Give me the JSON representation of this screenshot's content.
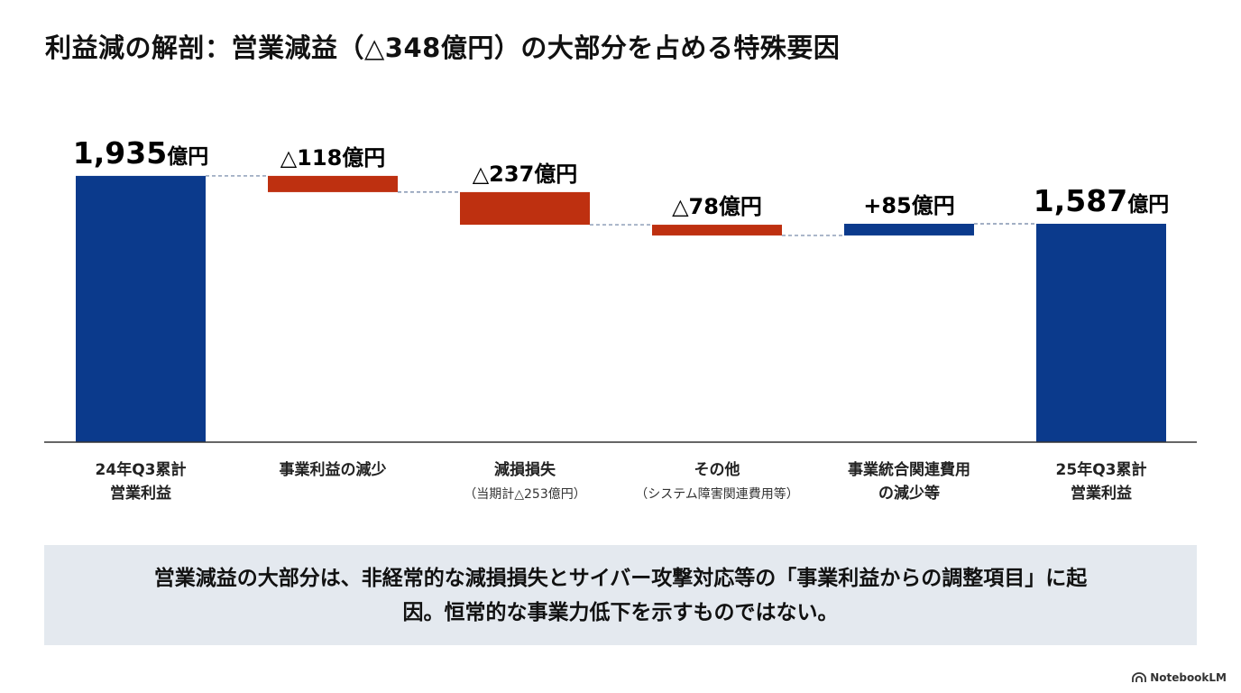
{
  "title": "利益減の解剖：営業減益（△348億円）の大部分を占める特殊要因",
  "chart_data": {
    "type": "waterfall",
    "unit": "億円",
    "bars": [
      {
        "category": [
          "24年Q3累計",
          "営業利益"
        ],
        "sub": "",
        "kind": "total",
        "value": 1935,
        "label_num": "1,935",
        "label_unit": "億円"
      },
      {
        "category": [
          "事業利益の減少"
        ],
        "sub": "",
        "kind": "decrease",
        "value": -118,
        "label": "△118億円"
      },
      {
        "category": [
          "減損損失"
        ],
        "sub": "（当期計△253億円）",
        "kind": "decrease",
        "value": -237,
        "label": "△237億円"
      },
      {
        "category": [
          "その他"
        ],
        "sub": "（システム障害関連費用等）",
        "kind": "decrease",
        "value": -78,
        "label": "△78億円"
      },
      {
        "category": [
          "事業統合関連費用",
          "の減少等"
        ],
        "sub": "",
        "kind": "increase",
        "value": 85,
        "label": "+85億円"
      },
      {
        "category": [
          "25年Q3累計",
          "営業利益"
        ],
        "sub": "",
        "kind": "total",
        "value": 1587,
        "label_num": "1,587",
        "label_unit": "億円"
      }
    ],
    "colors": {
      "total": "#0b3a8c",
      "increase": "#0b3a8c",
      "decrease": "#be3010",
      "connector": "#6a7fa0",
      "axis": "#333333"
    }
  },
  "summary": {
    "line1": "営業減益の大部分は、非経常的な減損損失とサイバー攻撃対応等の「事業利益からの調整項目」に起",
    "line2": "因。恒常的な事業力低下を示すものではない。"
  },
  "brand": "NotebookLM"
}
